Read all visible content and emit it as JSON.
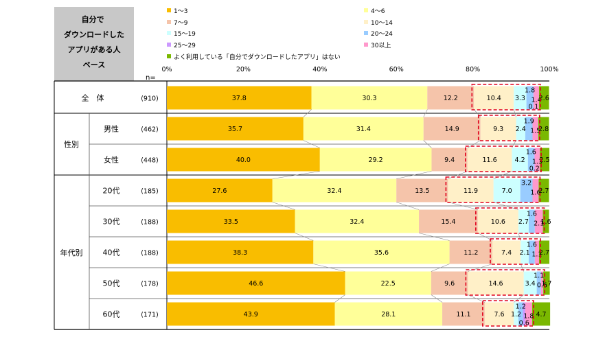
{
  "chart_data": {
    "type": "bar",
    "orientation": "horizontal-stacked-100",
    "title": "自分でダウンロードしたアプリがある人ベース",
    "n_label": "n=",
    "xlim": [
      0,
      100
    ],
    "x_ticks": [
      "0%",
      "20%",
      "40%",
      "60%",
      "80%",
      "100%"
    ],
    "groups": [
      {
        "label": "",
        "rows": [
          0
        ]
      },
      {
        "label": "性別",
        "rows": [
          1,
          2
        ]
      },
      {
        "label": "年代別",
        "rows": [
          3,
          4,
          5,
          6,
          7
        ]
      }
    ],
    "series": [
      {
        "name": "1～3",
        "color": "#f9bd00"
      },
      {
        "name": "4～6",
        "color": "#ffff99"
      },
      {
        "name": "7～9",
        "color": "#f5c4aa"
      },
      {
        "name": "10～14",
        "color": "#fff0c8"
      },
      {
        "name": "15～19",
        "color": "#ccffff"
      },
      {
        "name": "20～24",
        "color": "#99ccff"
      },
      {
        "name": "25～29",
        "color": "#cc99ff"
      },
      {
        "name": "30以上",
        "color": "#ff99cc"
      },
      {
        "name": "よく利用している「自分でダウンロードしたアプリ」はない",
        "color": "#7ab800"
      }
    ],
    "rows": [
      {
        "label": "全　体",
        "n": "(910)",
        "values": [
          "37.8",
          "30.3",
          "12.2",
          "10.4",
          "3.3",
          "1.8",
          "0.1",
          "1.4",
          "2.6"
        ]
      },
      {
        "label": "男性",
        "n": "(462)",
        "values": [
          "35.7",
          "31.4",
          "14.9",
          "9.3",
          "2.4",
          "1.9",
          "0.0",
          "1.5",
          "2.8"
        ]
      },
      {
        "label": "女性",
        "n": "(448)",
        "values": [
          "40.0",
          "29.2",
          "9.4",
          "11.6",
          "4.2",
          "1.6",
          "0.2",
          "1.3",
          "2.5"
        ]
      },
      {
        "label": "20代",
        "n": "(185)",
        "values": [
          "27.6",
          "32.4",
          "13.5",
          "11.9",
          "7.0",
          "3.2",
          "0.0",
          "1.6",
          "2.7"
        ]
      },
      {
        "label": "30代",
        "n": "(188)",
        "values": [
          "33.5",
          "32.4",
          "15.4",
          "10.6",
          "2.7",
          "1.6",
          "0.0",
          "2.1",
          "1.6"
        ]
      },
      {
        "label": "40代",
        "n": "(188)",
        "values": [
          "38.3",
          "35.6",
          "11.2",
          "7.4",
          "2.1",
          "1.6",
          "0.0",
          "1.1",
          "2.7"
        ]
      },
      {
        "label": "50代",
        "n": "(178)",
        "values": [
          "46.6",
          "22.5",
          "9.6",
          "14.6",
          "3.4",
          "1.1",
          "0.0",
          "0.6",
          "1.7"
        ]
      },
      {
        "label": "60代",
        "n": "(171)",
        "values": [
          "43.9",
          "28.1",
          "11.1",
          "7.6",
          "1.2",
          "1.2",
          "0.6",
          "1.8",
          "4.7"
        ]
      }
    ]
  }
}
